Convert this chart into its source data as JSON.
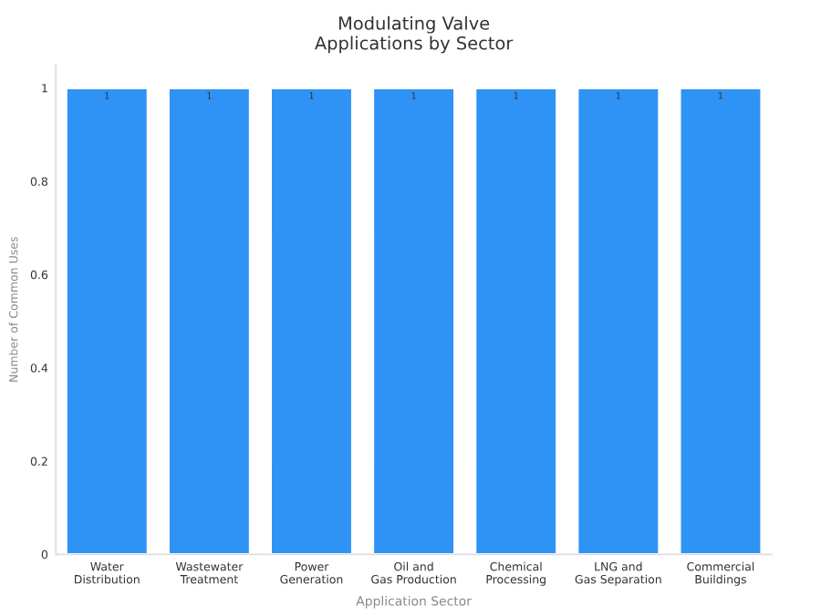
{
  "chart_data": {
    "type": "bar",
    "title": "Modulating Valve\nApplications by Sector",
    "xlabel": "Application Sector",
    "ylabel": "Number of Common Uses",
    "categories": [
      "Water\nDistribution",
      "Wastewater\nTreatment",
      "Power\nGeneration",
      "Oil and\nGas Production",
      "Chemical\nProcessing",
      "LNG and\nGas Separation",
      "Commercial\nBuildings"
    ],
    "values": [
      1,
      1,
      1,
      1,
      1,
      1,
      1
    ],
    "color": "#2f93f5",
    "ylim": [
      0,
      1.05
    ],
    "yticks": [
      0,
      0.2,
      0.4,
      0.6,
      0.8,
      1
    ],
    "grid": false,
    "data_labels": true
  }
}
